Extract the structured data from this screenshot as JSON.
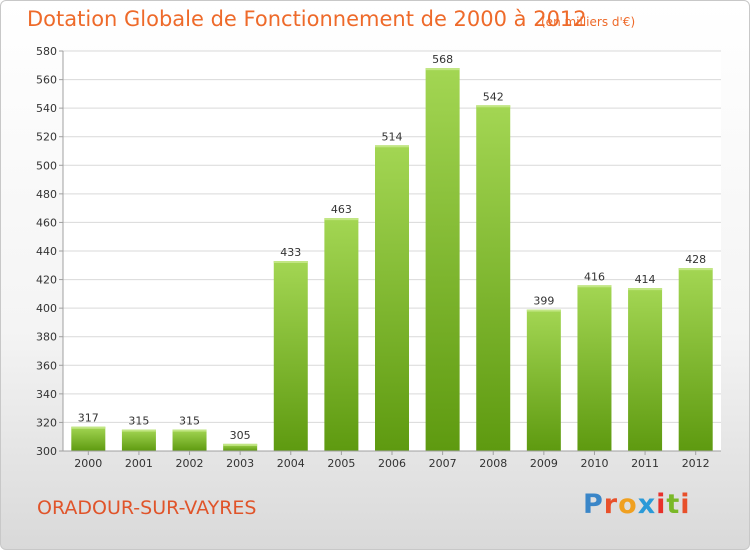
{
  "header": {
    "title": "Dotation Globale de Fonctionnement de 2000 à 2012",
    "subtitle": "(en milliers d'€)"
  },
  "footer": {
    "city": "ORADOUR-SUR-VAYRES",
    "logo": "Proxiti"
  },
  "colors": {
    "accent": "#ee6a2a",
    "bar_top": "#9ed04a",
    "bar_bottom": "#5f9c12",
    "grid": "#d9d9d9"
  },
  "chart_data": {
    "type": "bar",
    "categories": [
      "2000",
      "2001",
      "2002",
      "2003",
      "2004",
      "2005",
      "2006",
      "2007",
      "2008",
      "2009",
      "2010",
      "2011",
      "2012"
    ],
    "values": [
      317,
      315,
      315,
      305,
      433,
      463,
      514,
      568,
      542,
      399,
      416,
      414,
      428
    ],
    "title": "Dotation Globale de Fonctionnement de 2000 à 2012",
    "subtitle": "(en milliers d'€)",
    "ylim": [
      300,
      580
    ],
    "yticks": [
      300,
      320,
      340,
      360,
      380,
      400,
      420,
      440,
      460,
      480,
      500,
      520,
      540,
      560,
      580
    ],
    "grid": true
  }
}
